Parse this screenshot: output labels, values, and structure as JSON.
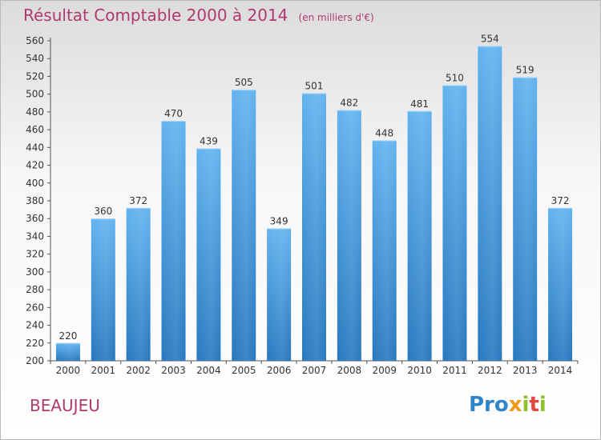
{
  "title": "Résultat Comptable 2000 à 2014",
  "subtitle": "(en milliers d'€)",
  "commune": "BEAUJEU",
  "logo": {
    "p1": "Pro",
    "p2": "x",
    "p3": "i",
    "p4": "t",
    "p5": "i"
  },
  "colors": {
    "bar": "#3a8fd3",
    "bar_light": "#5fb0ec",
    "title": "#b03a6e"
  },
  "chart_data": {
    "type": "bar",
    "title": "Résultat Comptable 2000 à 2014",
    "subtitle": "(en milliers d'€)",
    "xlabel": "",
    "ylabel": "",
    "categories": [
      "2000",
      "2001",
      "2002",
      "2003",
      "2004",
      "2005",
      "2006",
      "2007",
      "2008",
      "2009",
      "2010",
      "2011",
      "2012",
      "2013",
      "2014"
    ],
    "values": [
      220,
      360,
      372,
      470,
      439,
      505,
      349,
      501,
      482,
      448,
      481,
      510,
      554,
      519,
      372
    ],
    "ylim": [
      200,
      560
    ],
    "yticks": [
      200,
      220,
      240,
      260,
      280,
      300,
      320,
      340,
      360,
      380,
      400,
      420,
      440,
      460,
      480,
      500,
      520,
      540,
      560
    ],
    "grid": false,
    "legend": "none"
  }
}
